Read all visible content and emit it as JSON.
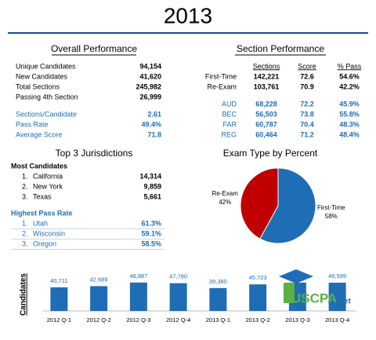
{
  "title": "2013",
  "overall": {
    "heading": "Overall Performance",
    "rows": [
      [
        "Unique Candidates",
        "94,154"
      ],
      [
        "New Candidates",
        "41,620"
      ],
      [
        "Total Sections",
        "245,982"
      ],
      [
        "Passing 4th Section",
        "26,999"
      ]
    ],
    "stats": [
      [
        "Sections/Candidate",
        "2.61"
      ],
      [
        "Pass Rate",
        "49.4%"
      ],
      [
        "Average Score",
        "71.8"
      ]
    ]
  },
  "section": {
    "heading": "Section Performance",
    "columns": [
      "Sections",
      "Score",
      "% Pass"
    ],
    "rows": [
      [
        "First-Time",
        "142,221",
        "72.6",
        "54.6%"
      ],
      [
        "Re-Exam",
        "103,761",
        "70.9",
        "42.2%"
      ]
    ],
    "sections": [
      [
        "AUD",
        "68,228",
        "72.2",
        "45.9%"
      ],
      [
        "BEC",
        "56,503",
        "73.8",
        "55.8%"
      ],
      [
        "FAR",
        "60,787",
        "70.4",
        "48.3%"
      ],
      [
        "REG",
        "60,464",
        "71.2",
        "48.4%"
      ]
    ]
  },
  "jurisdictions": {
    "heading": "Top 3 Jurisdictions",
    "most_heading": "Most Candidates",
    "most": [
      [
        "1.",
        "California",
        "14,314"
      ],
      [
        "2.",
        "New York",
        "9,859"
      ],
      [
        "3.",
        "Texas",
        "5,661"
      ]
    ],
    "pass_heading": "Highest Pass Rate",
    "pass": [
      [
        "1.",
        "Utah",
        "61.3%"
      ],
      [
        "2.",
        "Wisconsin",
        "59.1%"
      ],
      [
        "3.",
        "Oregon",
        "58.5%"
      ]
    ]
  },
  "chart_data": [
    {
      "type": "pie",
      "title": "Exam Type by Percent",
      "categories": [
        "First-Time",
        "Re-Exam"
      ],
      "values": [
        58,
        42
      ],
      "value_labels": [
        "58%",
        "42%"
      ],
      "colors": [
        "#1f6db5",
        "#c00000"
      ]
    },
    {
      "type": "bar",
      "ylabel": "Candidates",
      "categories": [
        "2012 Q-1",
        "2012 Q-2",
        "2012 Q-3",
        "2012 Q-4",
        "2013 Q-1",
        "2013 Q-2",
        "2013 Q-3",
        "2013 Q-4"
      ],
      "values": [
        40711,
        42689,
        48887,
        47780,
        39380,
        45723,
        48800,
        48599
      ],
      "value_labels": [
        "40,711",
        "42,689",
        "48,887",
        "47,780",
        "39,380",
        "45,723",
        null,
        "48,599"
      ],
      "color": "#1f6db5",
      "ylim": [
        0,
        50000
      ]
    }
  ],
  "logo": {
    "name": "USCPA",
    "suffix": ".net"
  }
}
